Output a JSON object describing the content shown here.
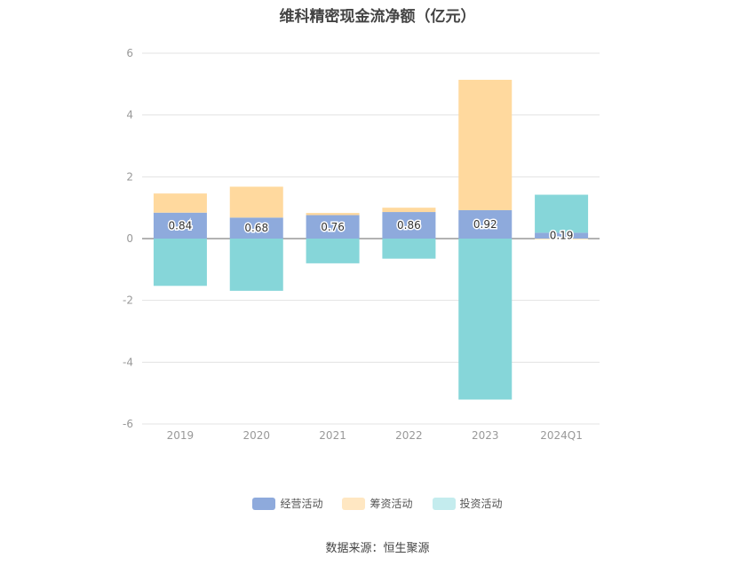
{
  "title": "维科精密现金流净额（亿元）",
  "source": "数据来源：恒生聚源",
  "chart_data": {
    "type": "bar",
    "stacked": true,
    "categories": [
      "2019",
      "2020",
      "2021",
      "2022",
      "2023",
      "2024Q1"
    ],
    "series": [
      {
        "name": "经营活动",
        "color": "#8eaadc",
        "values": [
          0.84,
          0.68,
          0.76,
          0.86,
          0.92,
          0.19
        ],
        "show_labels": true
      },
      {
        "name": "筹资活动",
        "color": "#ffd99e",
        "values": [
          0.62,
          1.0,
          0.07,
          0.14,
          4.22,
          -0.02
        ],
        "show_labels": false
      },
      {
        "name": "投资活动",
        "color": "#86d6d9",
        "values": [
          -1.53,
          -1.69,
          -0.8,
          -0.65,
          -5.21,
          1.23
        ],
        "show_labels": false
      }
    ],
    "yticks": [
      6,
      4,
      2,
      0,
      -2,
      -4,
      -6
    ],
    "ylim": [
      -6,
      6
    ],
    "grid": true,
    "legend_position": "bottom"
  },
  "legend": [
    {
      "label": "经营活动",
      "color": "#8eaadc"
    },
    {
      "label": "筹资活动",
      "color": "#ffe7c2"
    },
    {
      "label": "投资活动",
      "color": "#c4ecee"
    }
  ]
}
